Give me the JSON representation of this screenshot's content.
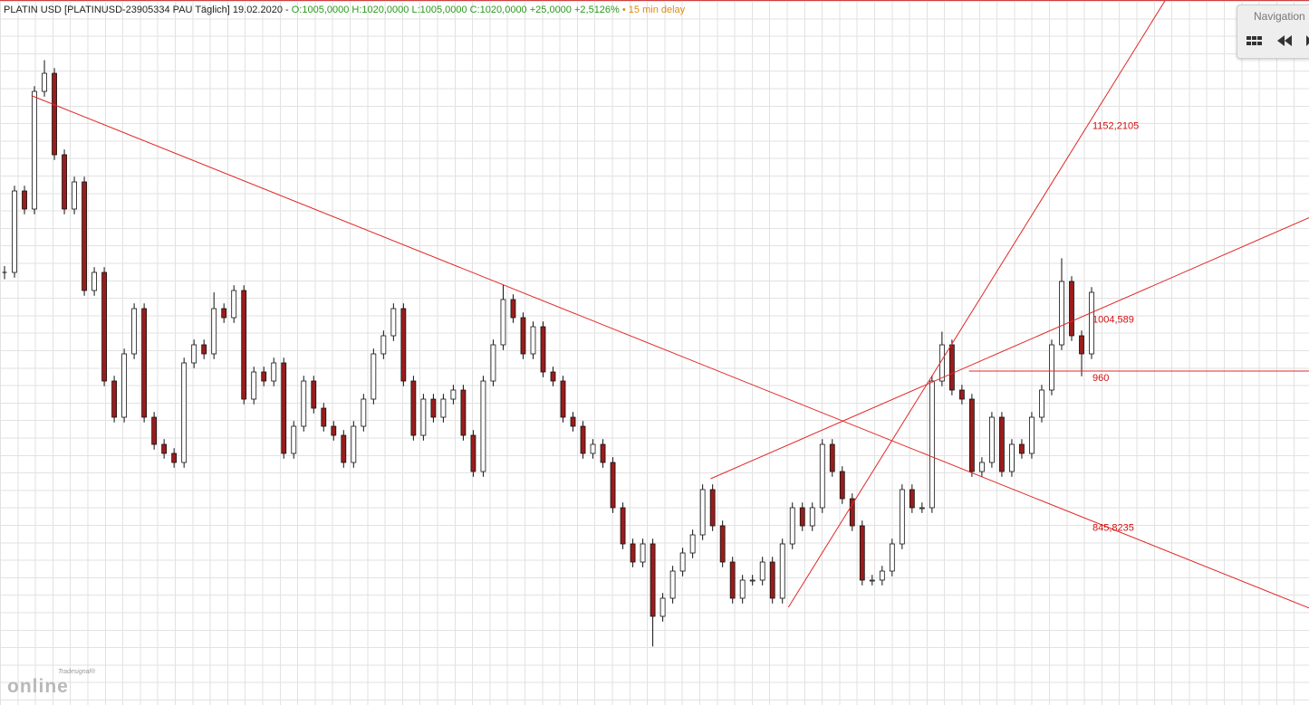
{
  "chart_data": {
    "type": "candlestick",
    "title": "PLATIN USD [PLATINUSD-23905334 PAU Täglich] 19.02.2020 -",
    "ohlc_summary": "O:1005,0000 H:1020,0000 L:1005,0000 C:1020,0000 +25,0000 +2,5126%",
    "delay_note": "• 15 min delay",
    "ylim": [
      704.7,
      1242.2
    ],
    "grid": true,
    "up_color": "#ffffff",
    "down_color": "#9b1c1c",
    "line_color": "#e02828",
    "close": [
      1035.2,
      1097.3,
      1083.5,
      1173.2,
      1187,
      1124.9,
      1083.5,
      1104.2,
      1021.4,
      1035.2,
      952.4,
      924.8,
      973.1,
      1007.6,
      924.8,
      904.1,
      897.2,
      890.3,
      966.2,
      980,
      973.1,
      1007.6,
      1000.7,
      1021.4,
      938.6,
      959.3,
      952.4,
      966.2,
      897.2,
      917.9,
      952.4,
      931.7,
      917.9,
      911,
      890.3,
      917.9,
      938.6,
      973.1,
      986.9,
      1007.6,
      952.4,
      911,
      938.6,
      924.8,
      938.6,
      945.5,
      911,
      883.4,
      952.4,
      980,
      1014.5,
      1000.7,
      973.1,
      993.8,
      959.3,
      952.4,
      924.8,
      917.9,
      897.2,
      904.1,
      890.3,
      855.8,
      828.2,
      814.4,
      828.2,
      773,
      786.8,
      807.5,
      821.3,
      835.1,
      869.6,
      842,
      814.4,
      786.8,
      800.6,
      800.6,
      814.4,
      786.8,
      828.2,
      855.8,
      842,
      855.8,
      904.1,
      883.4,
      862.7,
      842,
      800.6,
      800.6,
      807.5,
      828.2,
      869.6,
      855.8,
      855.8,
      952.4,
      980,
      945.5,
      938.6,
      883.4,
      890.3,
      924.8,
      883.4,
      904.1,
      897.2,
      924.8,
      945.5,
      980,
      1028.3,
      986.9,
      973.1,
      1020
    ],
    "high": [
      1040,
      1101.3,
      1101.3,
      1177.2,
      1197,
      1191,
      1128.9,
      1108.2,
      1108.2,
      1039.2,
      1039.2,
      956.4,
      977.1,
      1011.6,
      1011.6,
      928.8,
      908.1,
      901.2,
      970.2,
      984,
      984,
      1020,
      1011.6,
      1025.4,
      1025.4,
      963.3,
      963.3,
      970.2,
      970.2,
      921.9,
      956.4,
      956.4,
      935.7,
      921.9,
      915,
      921.9,
      942.6,
      977.1,
      990.9,
      1011.6,
      1011.6,
      956.4,
      942.6,
      942.6,
      942.6,
      949.5,
      949.5,
      915,
      956.4,
      984,
      1026,
      1018.5,
      1004.7,
      997.8,
      997.8,
      963.3,
      956.4,
      928.8,
      921.9,
      908.1,
      908.1,
      894.3,
      859.8,
      832.2,
      832.2,
      832.2,
      790.8,
      811.5,
      825.3,
      839.1,
      873.6,
      873.6,
      846,
      818.4,
      804.6,
      804.6,
      818.4,
      818.4,
      832.2,
      859.8,
      859.8,
      859.8,
      908.1,
      908.1,
      887.4,
      866.7,
      846,
      804.6,
      811.5,
      832.2,
      873.6,
      873.6,
      859.8,
      956.4,
      990,
      984,
      949.5,
      942.6,
      894.3,
      928.8,
      928.8,
      908.1,
      908.1,
      928.8,
      949.5,
      984,
      1046,
      1032.3,
      990.9,
      1024
    ],
    "low": [
      1030,
      1031.2,
      1079.5,
      1079.5,
      1169.2,
      1120.9,
      1079.5,
      1079.5,
      1017.4,
      1017.4,
      948.4,
      920.8,
      920.8,
      969.1,
      920.8,
      900.1,
      893.2,
      886.3,
      886.3,
      962.2,
      969.1,
      969.1,
      996.7,
      996.7,
      934.6,
      934.6,
      948.4,
      948.4,
      893.2,
      893.2,
      913.9,
      927.7,
      913.9,
      907,
      886.3,
      886.3,
      913.9,
      934.6,
      969.1,
      982.9,
      948.4,
      907,
      907,
      920.8,
      920.8,
      934.6,
      907,
      879.4,
      879.4,
      948.4,
      976,
      996.7,
      969.1,
      969.1,
      955.3,
      948.4,
      920.8,
      913.9,
      893.2,
      893.2,
      886.3,
      851.8,
      824.2,
      810.4,
      810.4,
      750,
      769,
      782.8,
      803.5,
      817.3,
      831.1,
      838,
      810.4,
      782.8,
      782.8,
      796.6,
      796.6,
      782.8,
      782.8,
      824.2,
      838,
      838,
      851.8,
      879.4,
      858.7,
      838,
      796.6,
      796.6,
      796.6,
      803.5,
      824.2,
      851.8,
      851.8,
      851.8,
      948.4,
      941.5,
      934.6,
      879.4,
      879.4,
      886.3,
      879.4,
      879.4,
      893.2,
      893.2,
      920.8,
      941.5,
      976,
      982.9,
      956,
      969.1
    ],
    "trend_lines": [
      {
        "start": [
          2.7,
          1170
        ],
        "end": {
          "value": 845.8235,
          "label": "845,8235"
        }
      },
      {
        "start": [
          78.6,
          779.9
        ],
        "end": {
          "value": 1152.2105,
          "label": "1152,2105"
        }
      },
      {
        "start": [
          70.8,
          877.9
        ],
        "end": {
          "value": 1004.589,
          "label": "1004,589"
        }
      },
      {
        "start": [
          96.7,
          960
        ],
        "end": {
          "value": 960,
          "label": "960"
        }
      }
    ]
  },
  "navigation": {
    "title": "Navigation"
  },
  "logo": {
    "brand": "Tradesignal®",
    "text": "online"
  }
}
